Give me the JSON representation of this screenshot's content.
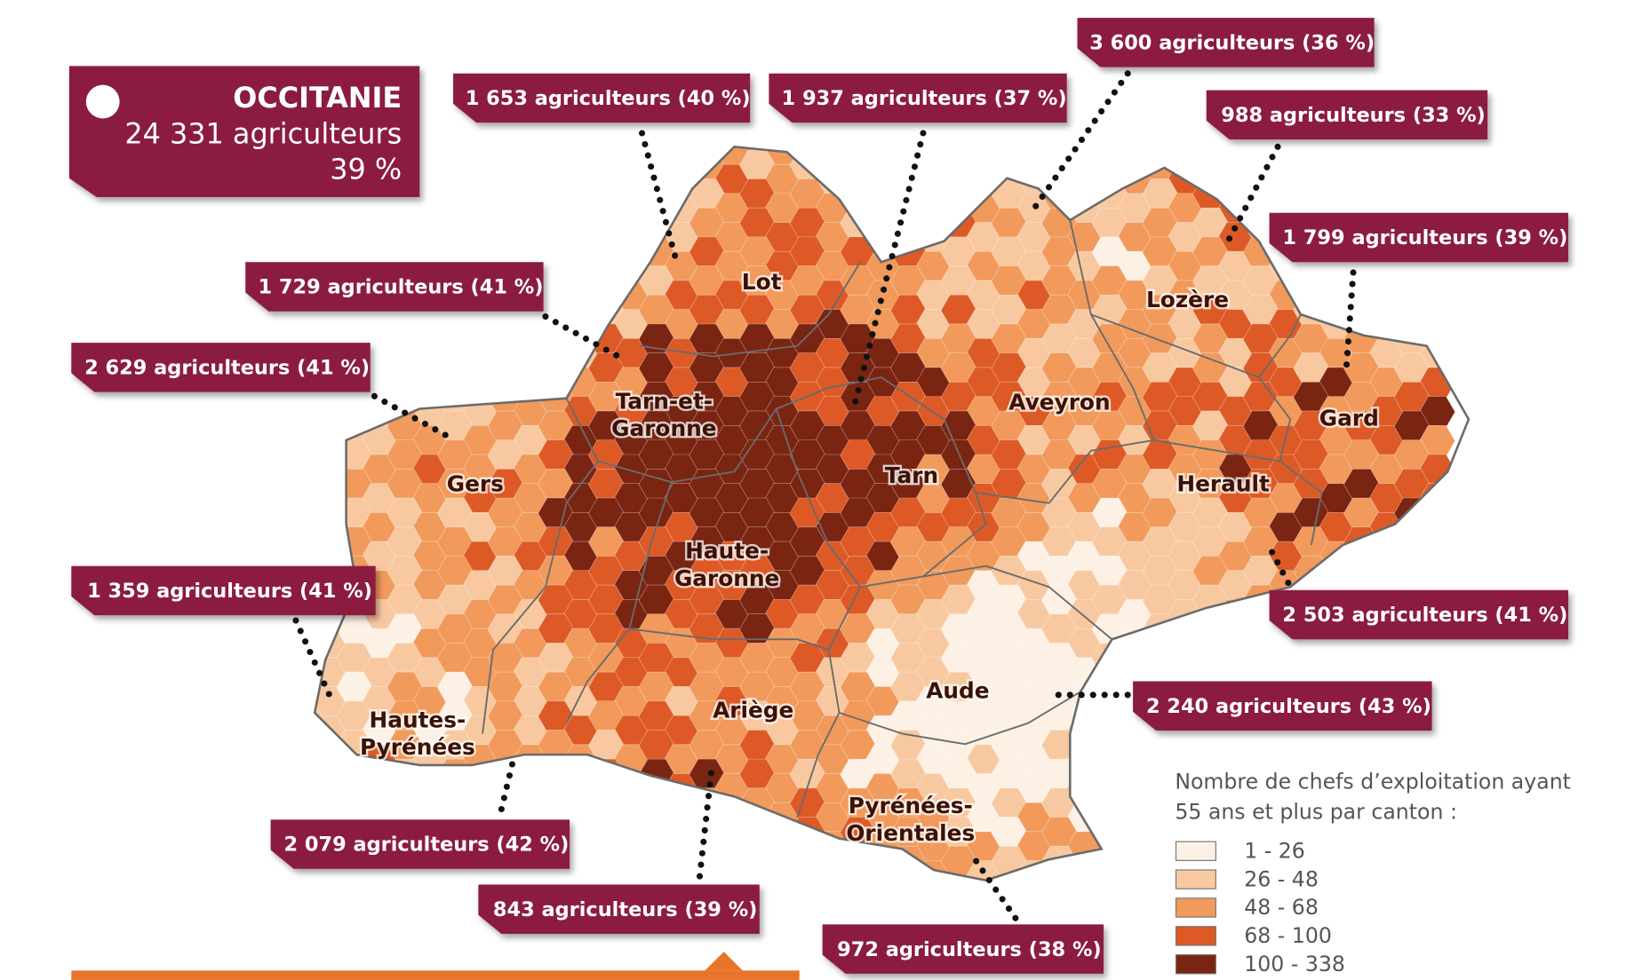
{
  "summary": {
    "region": "OCCITANIE",
    "farmers": "24 331 agriculteurs",
    "share": "39 %"
  },
  "callouts": [
    "1 653 agriculteurs (40 %)",
    "1 937 agriculteurs (37 %)",
    "3 600 agriculteurs (36 %)",
    "988 agriculteurs (33 %)",
    "1 799 agriculteurs (39 %)",
    "1 729 agriculteurs (41 %)",
    "2 629 agriculteurs (41 %)",
    "1 359 agriculteurs (41 %)",
    "2 079 agriculteurs (42 %)",
    "843 agriculteurs (39 %)",
    "972 agriculteurs (38 %)",
    "2 240 agriculteurs (43 %)",
    "2 503 agriculteurs (41 %)"
  ],
  "departments": [
    {
      "lines": [
        "Lot"
      ]
    },
    {
      "lines": [
        "Lozère"
      ]
    },
    {
      "lines": [
        "Tarn-et-",
        "Garonne"
      ]
    },
    {
      "lines": [
        "Aveyron"
      ]
    },
    {
      "lines": [
        "Gard"
      ]
    },
    {
      "lines": [
        "Gers"
      ]
    },
    {
      "lines": [
        "Tarn"
      ]
    },
    {
      "lines": [
        "Herault"
      ]
    },
    {
      "lines": [
        "Haute-",
        "Garonne"
      ]
    },
    {
      "lines": [
        "Aude"
      ]
    },
    {
      "lines": [
        "Ariège"
      ]
    },
    {
      "lines": [
        "Hautes-",
        "Pyrénées"
      ]
    },
    {
      "lines": [
        "Pyrénées-",
        "Orientales"
      ]
    }
  ],
  "legend": {
    "title": [
      "Nombre de chefs d’exploitation ayant",
      "55 ans et plus par canton :"
    ],
    "classes": [
      {
        "label": "1 - 26",
        "color": "#fdf1e6"
      },
      {
        "label": "26 - 48",
        "color": "#f8c9a0"
      },
      {
        "label": "48 - 68",
        "color": "#f19a5c"
      },
      {
        "label": "68 - 100",
        "color": "#dd5a26"
      },
      {
        "label": "100 - 338",
        "color": "#7a2412"
      }
    ]
  }
}
